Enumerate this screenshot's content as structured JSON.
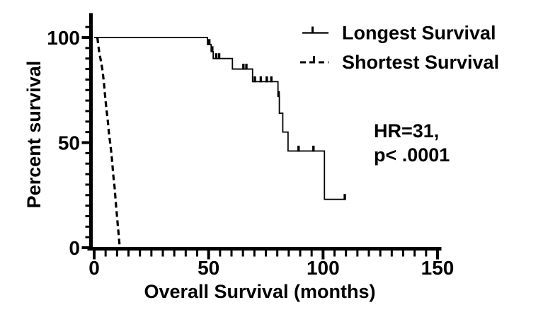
{
  "figure": {
    "background_color": "#ffffff",
    "ink_color": "#000000"
  },
  "chart_data": {
    "type": "line",
    "subtype": "kaplan_meier_step",
    "title": "",
    "xlabel": "Overall Survival (months)",
    "ylabel": "Percent survival",
    "xlim": [
      0,
      150
    ],
    "ylim": [
      0,
      100
    ],
    "x_major_ticks": [
      0,
      50,
      100,
      150
    ],
    "x_minor_tick_step": 5,
    "y_major_ticks": [
      0,
      50,
      100
    ],
    "y_minor_tick_step": 5,
    "grid": false,
    "legend_position": "top-right",
    "annotation_lines": [
      "HR=31,",
      "p< .0001"
    ],
    "series": [
      {
        "name": "Longest Survival",
        "line_style": "solid",
        "color": "#000000",
        "points": [
          [
            0,
            100
          ],
          [
            49.5,
            100
          ],
          [
            49.5,
            96.7
          ],
          [
            51.1,
            96.7
          ],
          [
            51.1,
            93.3
          ],
          [
            52,
            93.3
          ],
          [
            52,
            90
          ],
          [
            60.4,
            90
          ],
          [
            60.4,
            85
          ],
          [
            69.2,
            85
          ],
          [
            69.2,
            79
          ],
          [
            80.3,
            79
          ],
          [
            80.3,
            72
          ],
          [
            80.9,
            72
          ],
          [
            80.9,
            64
          ],
          [
            82.4,
            64
          ],
          [
            82.4,
            55
          ],
          [
            84.7,
            55
          ],
          [
            84.7,
            46
          ],
          [
            100.6,
            46
          ],
          [
            100.6,
            23
          ],
          [
            109.5,
            23
          ]
        ],
        "censor_marks": [
          [
            50.3,
            96.7
          ],
          [
            51.6,
            93.3
          ],
          [
            53.3,
            90
          ],
          [
            54.6,
            90
          ],
          [
            65.2,
            85
          ],
          [
            66.5,
            85
          ],
          [
            70.2,
            79
          ],
          [
            72.8,
            79
          ],
          [
            75.4,
            79
          ],
          [
            77.4,
            79
          ],
          [
            80.6,
            72
          ],
          [
            89.3,
            46
          ],
          [
            95.8,
            46
          ],
          [
            109.5,
            23
          ]
        ]
      },
      {
        "name": "Shortest Survival",
        "line_style": "dashed",
        "color": "#000000",
        "points": [
          [
            1.4,
            100
          ],
          [
            2.2,
            93
          ],
          [
            3.1,
            88
          ],
          [
            3.7,
            84
          ],
          [
            4.3,
            78
          ],
          [
            4.8,
            72
          ],
          [
            5.3,
            66.5
          ],
          [
            5.9,
            61
          ],
          [
            6.5,
            54
          ],
          [
            7.1,
            49
          ],
          [
            7.7,
            43
          ],
          [
            8.4,
            34
          ],
          [
            9,
            28
          ],
          [
            9.4,
            22
          ],
          [
            9.9,
            16
          ],
          [
            10.3,
            11
          ],
          [
            10.8,
            5
          ],
          [
            11.2,
            0
          ]
        ],
        "censor_marks": []
      }
    ]
  }
}
